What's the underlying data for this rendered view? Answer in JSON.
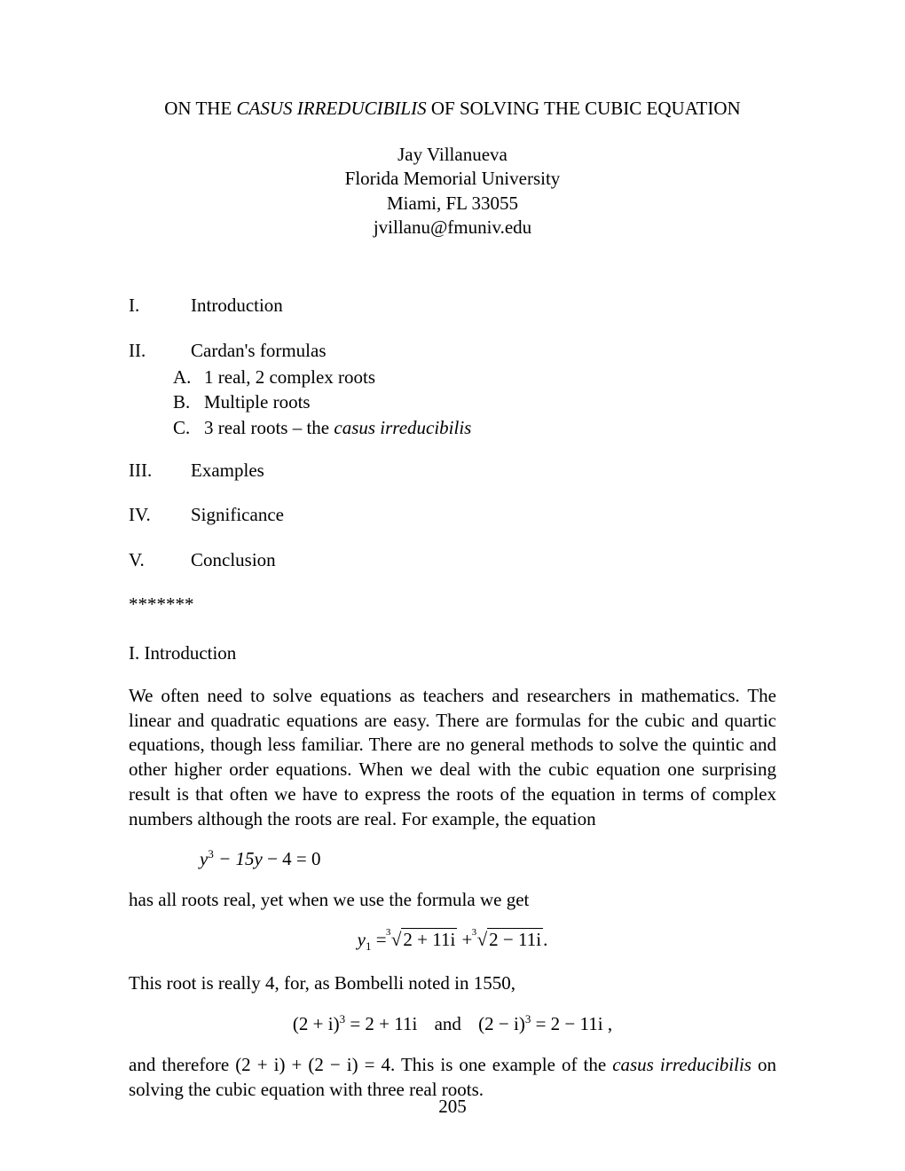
{
  "title": {
    "prefix": "ON THE ",
    "italic": "CASUS IRREDUCIBILIS",
    "suffix": " OF SOLVING THE CUBIC EQUATION"
  },
  "author": {
    "name": "Jay Villanueva",
    "affiliation": "Florida Memorial University",
    "location": "Miami, FL 33055",
    "email": "jvillanu@fmuniv.edu"
  },
  "outline": {
    "items": [
      {
        "num": "I.",
        "label": "Introduction"
      },
      {
        "num": "II.",
        "label": "Cardan's formulas",
        "sub": [
          {
            "num": "A.",
            "label": "1 real, 2 complex roots"
          },
          {
            "num": "B.",
            "label": "Multiple roots"
          },
          {
            "num": "C.",
            "label_pre": "3 real roots – the ",
            "label_it": "casus irreducibilis"
          }
        ]
      },
      {
        "num": "III.",
        "label": "Examples"
      },
      {
        "num": "IV.",
        "label": "Significance"
      },
      {
        "num": "V.",
        "label": "Conclusion"
      }
    ]
  },
  "stars": "*******",
  "section1": {
    "head": "I.   Introduction",
    "para1": "We often need to solve equations as teachers and researchers in mathematics. The linear and quadratic equations are easy. There are formulas for the cubic and quartic equations, though less familiar. There are no general methods to solve the quintic and other higher order equations. When we deal with the cubic equation one surprising result is that often we have to express the roots of the equation in terms of complex numbers although the roots are real. For example, the equation",
    "eq1": {
      "lhs_a": "y",
      "exp": "3",
      "lhs_b": " − 15y",
      "rhs": "  − 4 = 0"
    },
    "para2": "has all roots real, yet when we use the formula we get",
    "eq2": {
      "y": "y",
      "sub": "1",
      "eq": " = ",
      "root_idx": "3",
      "rad1": "2 + 11i",
      "plus": " + ",
      "rad2": "2 − 11i",
      "tail": "."
    },
    "para3": "This root is really 4, for, as Bombelli noted in 1550,",
    "eq3": {
      "a": "(2 + i)",
      "a_exp": "3",
      "a_rhs": " = 2 + 11i",
      "and": "and",
      "b": "(2 − i)",
      "b_exp": "3",
      "b_rhs": " = 2 − 11i",
      "tail": " ,"
    },
    "para4_pre": "and therefore  ",
    "para4_math": "(2 + i) + (2 − i) = 4.",
    "para4_mid": " This is one example of the ",
    "para4_it": "casus irreducibilis",
    "para4_post": " on solving the cubic equation with three real roots."
  },
  "page_number": "205",
  "colors": {
    "text": "#000000",
    "background": "#ffffff"
  },
  "typography": {
    "body_fontsize_pt": 16,
    "font_family": "Times New Roman"
  }
}
